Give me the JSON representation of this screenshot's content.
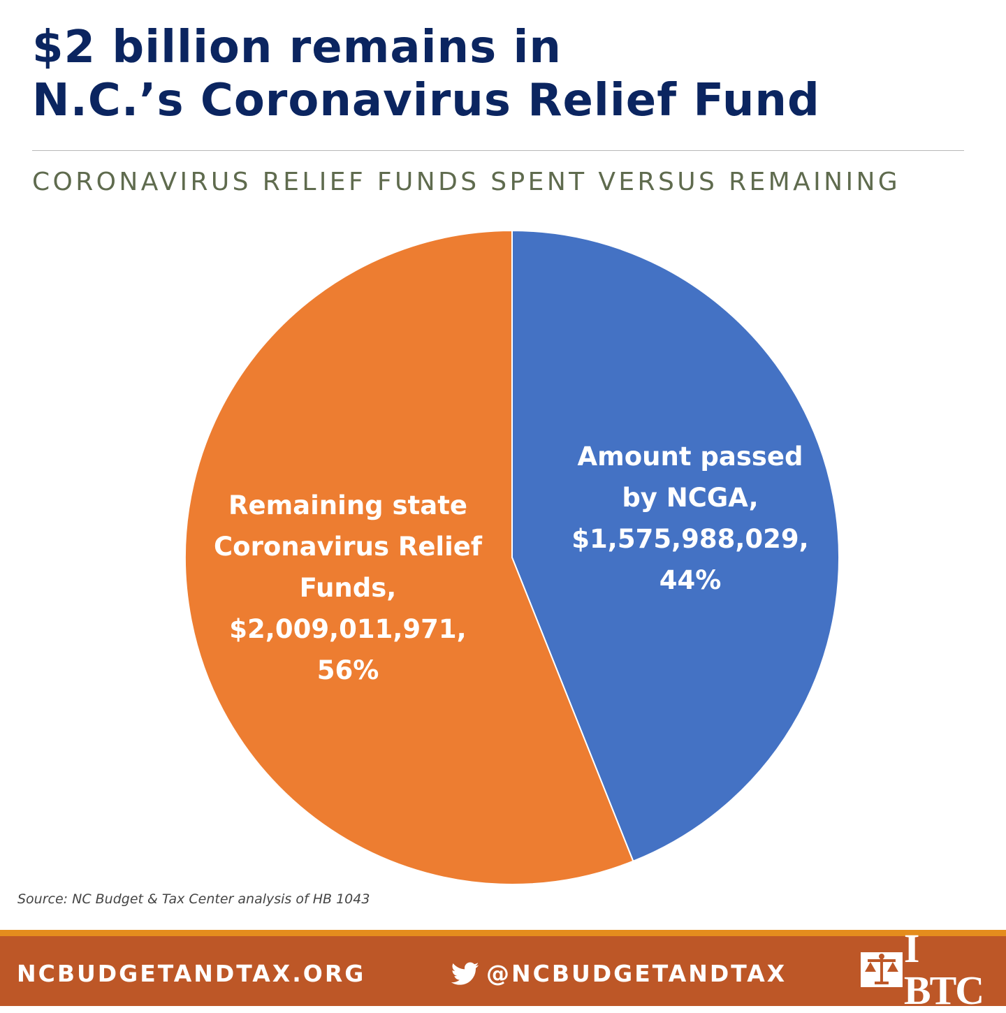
{
  "header": {
    "title_line1": "$2 billion remains in",
    "title_line2": "N.C.’s Coronavirus Relief Fund",
    "subtitle": "CORONAVIRUS RELIEF FUNDS SPENT VERSUS REMAINING"
  },
  "chart_data": {
    "type": "pie",
    "slices": [
      {
        "name": "Amount passed by NCGA",
        "value": 1575988029,
        "percent": 44,
        "color": "#4472c4",
        "label_lines": [
          "Amount passed",
          "by NCGA,",
          "$1,575,988,029,",
          "44%"
        ]
      },
      {
        "name": "Remaining state Coronavirus Relief Funds",
        "value": 2009011971,
        "percent": 56,
        "color": "#ed7d31",
        "label_lines": [
          "Remaining state",
          "Coronavirus Relief",
          "Funds,",
          "$2,009,011,971,",
          "56%"
        ]
      }
    ],
    "start_angle": "12 o'clock",
    "direction": "clockwise"
  },
  "source": "Source: NC Budget & Tax Center analysis of HB 1043",
  "footer": {
    "website": "NCBUDGETANDTAX.ORG",
    "twitter": "@NCBUDGETANDTAX",
    "logo_text": "I BTC",
    "icons": [
      "twitter-bird-icon",
      "btc-scales-logo"
    ],
    "colors": {
      "band": "#bd5727",
      "stripe": "#e48c1d"
    }
  }
}
